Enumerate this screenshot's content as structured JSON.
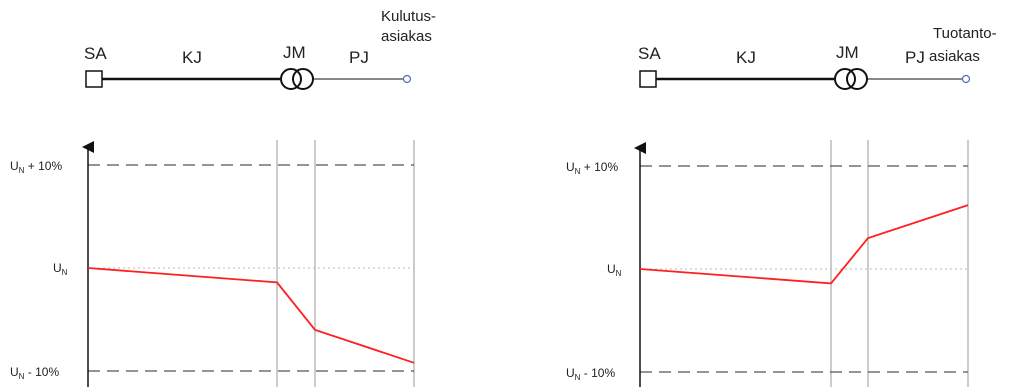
{
  "panels": [
    {
      "id": "consumption",
      "diagram": {
        "labels": {
          "sa": "SA",
          "kj": "KJ",
          "jm": "JM",
          "pj": "PJ"
        },
        "customer_line1": "Kulutus-",
        "customer_line2": "asiakas"
      },
      "y_labels": {
        "upper": {
          "base": "U",
          "sub": "N",
          "suffix": " + 10%"
        },
        "nominal": {
          "base": "U",
          "sub": "N",
          "suffix": ""
        },
        "lower": {
          "base": "U",
          "sub": "N",
          "suffix": " - 10%"
        }
      },
      "profile_percent": [
        0,
        -1.4,
        -6,
        -9.2
      ]
    },
    {
      "id": "production",
      "diagram": {
        "labels": {
          "sa": "SA",
          "kj": "KJ",
          "jm": "JM",
          "pj": "PJ"
        },
        "customer_line1": "Tuotanto-",
        "customer_line2": "asiakas"
      },
      "y_labels": {
        "upper": {
          "base": "U",
          "sub": "N",
          "suffix": " + 10%"
        },
        "nominal": {
          "base": "U",
          "sub": "N",
          "suffix": ""
        },
        "lower": {
          "base": "U",
          "sub": "N",
          "suffix": " - 10%"
        }
      },
      "profile_percent": [
        0,
        -1.4,
        3,
        6.2
      ]
    }
  ],
  "colors": {
    "profile": "#ff1f1f",
    "limit": "#555555",
    "grid": "#999999",
    "axis": "#111111",
    "node": "#4a6fb0"
  }
}
